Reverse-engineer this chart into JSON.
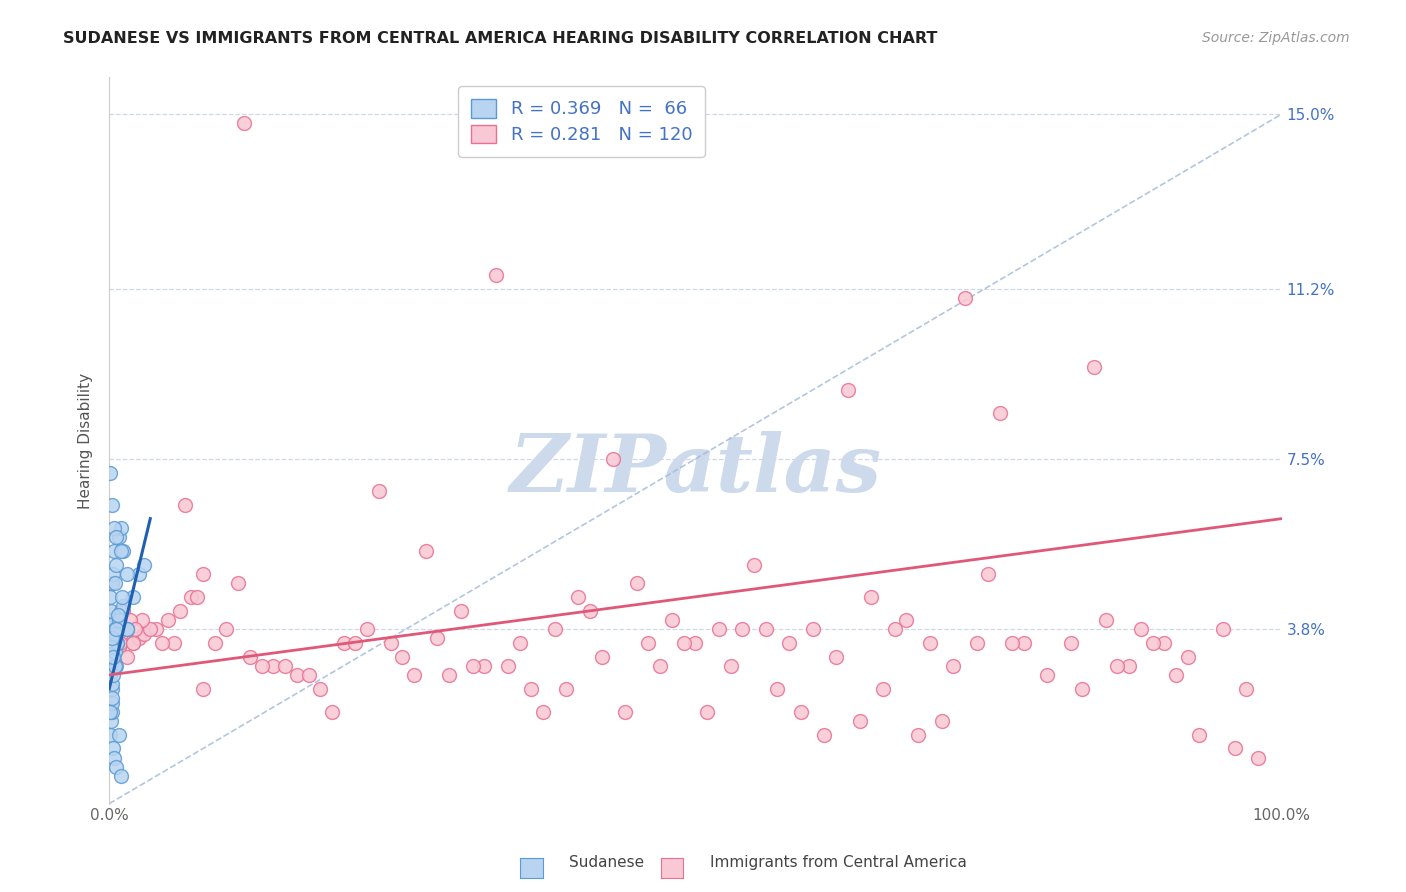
{
  "title": "SUDANESE VS IMMIGRANTS FROM CENTRAL AMERICA HEARING DISABILITY CORRELATION CHART",
  "source": "Source: ZipAtlas.com",
  "ylabel": "Hearing Disability",
  "xlim": [
    0,
    100
  ],
  "ylim": [
    0,
    15.8
  ],
  "ytick_vals": [
    3.8,
    7.5,
    11.2,
    15.0
  ],
  "ytick_labels": [
    "3.8%",
    "7.5%",
    "11.2%",
    "15.0%"
  ],
  "xtick_vals": [
    0,
    100
  ],
  "xtick_labels": [
    "0.0%",
    "100.0%"
  ],
  "sudanese_color": "#b8d4f0",
  "central_america_color": "#f8c8d4",
  "sudanese_edge": "#5b9bd5",
  "central_america_edge": "#e87090",
  "blue_line_color": "#2060b0",
  "pink_line_color": "#e05878",
  "diagonal_color": "#a0b8d8",
  "watermark_color": "#ccdaeb",
  "background_color": "#ffffff",
  "grid_color": "#d0d8e8",
  "legend_edge_color": "#cccccc",
  "sudanese_R": 0.369,
  "sudanese_N": 66,
  "central_america_R": 0.281,
  "central_america_N": 120,
  "sudanese_x": [
    0.1,
    0.1,
    0.15,
    0.2,
    0.25,
    0.3,
    0.35,
    0.4,
    0.45,
    0.5,
    0.1,
    0.15,
    0.2,
    0.25,
    0.3,
    0.4,
    0.5,
    0.6,
    0.7,
    0.8,
    0.1,
    0.15,
    0.2,
    0.3,
    0.4,
    0.5,
    0.6,
    0.8,
    1.0,
    1.2,
    0.1,
    0.15,
    0.2,
    0.25,
    0.3,
    0.4,
    0.6,
    0.8,
    1.0,
    1.5,
    0.1,
    0.2,
    0.3,
    0.5,
    0.7,
    1.0,
    1.5,
    2.0,
    2.5,
    3.0,
    0.1,
    0.2,
    0.4,
    0.6,
    1.0,
    1.5,
    0.3,
    0.5,
    0.8,
    1.2,
    0.15,
    0.25,
    0.35,
    0.55,
    0.75,
    1.1
  ],
  "sudanese_y": [
    3.5,
    3.8,
    4.0,
    3.6,
    3.4,
    3.7,
    3.9,
    3.5,
    3.6,
    3.8,
    2.8,
    3.0,
    2.5,
    2.6,
    3.2,
    3.1,
    3.3,
    3.0,
    3.5,
    4.0,
    4.5,
    4.2,
    4.8,
    5.0,
    5.5,
    4.8,
    5.2,
    5.8,
    6.0,
    5.5,
    1.5,
    1.8,
    2.0,
    2.2,
    1.2,
    1.0,
    0.8,
    1.5,
    0.6,
    3.8,
    2.0,
    2.3,
    2.8,
    3.0,
    3.5,
    4.2,
    3.8,
    4.5,
    5.0,
    5.2,
    7.2,
    6.5,
    6.0,
    5.8,
    5.5,
    5.0,
    3.6,
    3.7,
    4.0,
    4.3,
    3.4,
    3.6,
    3.2,
    3.8,
    4.1,
    4.5
  ],
  "central_x": [
    0.2,
    0.3,
    0.5,
    0.8,
    1.0,
    1.5,
    2.0,
    2.5,
    3.0,
    4.0,
    5.0,
    6.0,
    7.0,
    8.0,
    9.0,
    10.0,
    12.0,
    14.0,
    16.0,
    18.0,
    20.0,
    22.0,
    25.0,
    28.0,
    30.0,
    32.0,
    35.0,
    38.0,
    40.0,
    42.0,
    45.0,
    48.0,
    50.0,
    52.0,
    55.0,
    58.0,
    60.0,
    62.0,
    65.0,
    68.0,
    70.0,
    72.0,
    75.0,
    78.0,
    80.0,
    82.0,
    85.0,
    88.0,
    90.0,
    92.0,
    95.0,
    97.0,
    0.4,
    0.6,
    0.9,
    1.2,
    2.0,
    3.5,
    5.5,
    7.5,
    11.0,
    15.0,
    19.0,
    24.0,
    29.0,
    34.0,
    39.0,
    44.0,
    49.0,
    54.0,
    59.0,
    64.0,
    69.0,
    74.0,
    0.3,
    0.7,
    1.5,
    2.8,
    4.5,
    8.0,
    13.0,
    17.0,
    21.0,
    26.0,
    31.0,
    36.0,
    41.0,
    46.0,
    51.0,
    56.0,
    61.0,
    66.0,
    71.0,
    76.0,
    83.0,
    87.0,
    93.0,
    98.0,
    27.0,
    37.0,
    47.0,
    57.0,
    67.0,
    77.0,
    86.0,
    91.0,
    96.0,
    0.5,
    1.8,
    6.5,
    23.0,
    43.0,
    63.0,
    84.0,
    2.2,
    11.5,
    33.0,
    53.0,
    73.0,
    89.0
  ],
  "central_y": [
    3.8,
    3.5,
    3.6,
    3.4,
    3.7,
    3.8,
    3.5,
    3.6,
    3.7,
    3.8,
    4.0,
    4.2,
    4.5,
    5.0,
    3.5,
    3.8,
    3.2,
    3.0,
    2.8,
    2.5,
    3.5,
    3.8,
    3.2,
    3.6,
    4.2,
    3.0,
    3.5,
    3.8,
    4.5,
    3.2,
    4.8,
    4.0,
    3.5,
    3.8,
    5.2,
    3.5,
    3.8,
    3.2,
    4.5,
    4.0,
    3.5,
    3.0,
    5.0,
    3.5,
    2.8,
    3.5,
    4.0,
    3.8,
    3.5,
    3.2,
    3.8,
    2.5,
    4.0,
    3.8,
    3.5,
    4.2,
    3.5,
    3.8,
    3.5,
    4.5,
    4.8,
    3.0,
    2.0,
    3.5,
    2.8,
    3.0,
    2.5,
    2.0,
    3.5,
    3.8,
    2.0,
    1.8,
    1.5,
    3.5,
    3.6,
    3.8,
    3.2,
    4.0,
    3.5,
    2.5,
    3.0,
    2.8,
    3.5,
    2.8,
    3.0,
    2.5,
    4.2,
    3.5,
    2.0,
    3.8,
    1.5,
    2.5,
    1.8,
    8.5,
    2.5,
    3.0,
    1.5,
    1.0,
    5.5,
    2.0,
    3.0,
    2.5,
    3.8,
    3.5,
    3.0,
    2.8,
    1.2,
    3.5,
    4.0,
    6.5,
    6.8,
    7.5,
    9.0,
    9.5,
    3.8,
    14.8,
    11.5,
    3.0,
    11.0,
    3.5
  ]
}
